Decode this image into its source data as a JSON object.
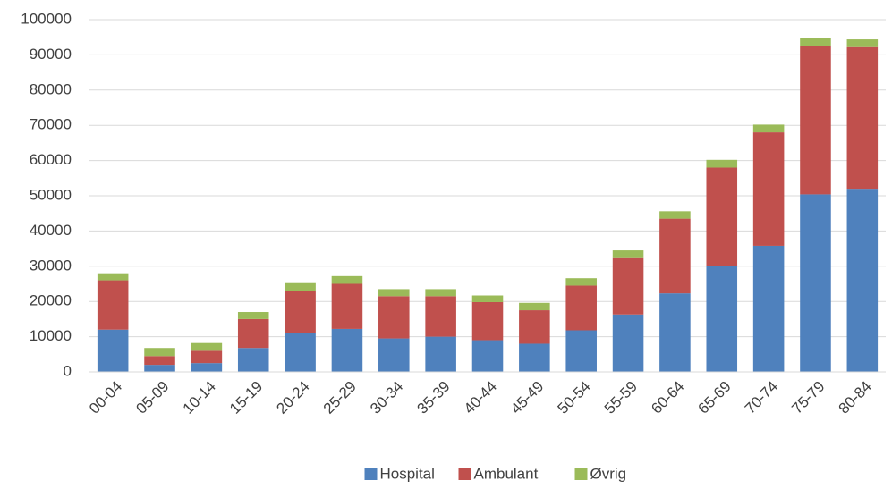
{
  "chart_data": {
    "type": "stacked_bar",
    "categories": [
      "00-04",
      "05-09",
      "10-14",
      "15-19",
      "20-24",
      "25-29",
      "30-34",
      "35-39",
      "40-44",
      "45-49",
      "50-54",
      "55-59",
      "60-64",
      "65-69",
      "70-74",
      "75-79",
      "80-84"
    ],
    "series": [
      {
        "name": "Hospital",
        "color": "#4f81bd",
        "values": [
          12000,
          2000,
          2500,
          6800,
          11000,
          12200,
          9500,
          10000,
          9000,
          8000,
          11800,
          16300,
          22300,
          30000,
          35800,
          50400,
          52000
        ]
      },
      {
        "name": "Ambulant",
        "color": "#c0504d",
        "values": [
          14000,
          2500,
          3500,
          8200,
          12000,
          12800,
          12000,
          11500,
          10800,
          9500,
          12700,
          16000,
          21200,
          28000,
          32200,
          42100,
          40200
        ]
      },
      {
        "name": "Øvrig",
        "color": "#9bbb59",
        "values": [
          2000,
          2300,
          2200,
          2000,
          2200,
          2200,
          2000,
          2000,
          1900,
          2100,
          2100,
          2200,
          2100,
          2200,
          2200,
          2200,
          2200
        ]
      }
    ],
    "ylim": [
      0,
      100000
    ],
    "yticks": [
      0,
      10000,
      20000,
      30000,
      40000,
      50000,
      60000,
      70000,
      80000,
      90000,
      100000
    ],
    "grid": true,
    "legend": "bottom"
  }
}
